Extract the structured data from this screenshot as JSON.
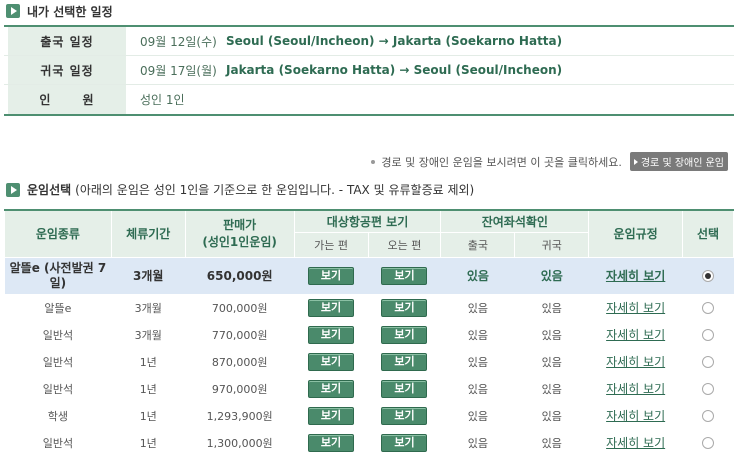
{
  "section_selected": {
    "title": "내가 선택한 일정"
  },
  "itinerary": [
    {
      "label": "출국 일정",
      "date": "09월 12일(수)",
      "route": "Seoul (Seoul/Incheon) → Jakarta (Soekarno Hatta)"
    },
    {
      "label": "귀국 일정",
      "date": "09월 17일(월)",
      "route": "Jakarta (Soekarno Hatta) → Seoul (Seoul/Incheon)"
    },
    {
      "label": "인      원",
      "date": "성인 1인",
      "route": ""
    }
  ],
  "notice": {
    "text": "경로 및 장애인 운임을 보시려면 이 곳을 클릭하세요.",
    "button_label": "경로 및 장애인 운임"
  },
  "fare_section": {
    "title": "운임선택",
    "subtitle": "(아래의 운임은 성인 1인을 기준으로 한 운임입니다. - TAX 및 유류할증료 제외)"
  },
  "table_headers": {
    "fare_type": "운임종류",
    "stay": "체류기간",
    "price": "판매가\n(성인1인운임)",
    "flight_view": "대상항공편 보기",
    "seat_check": "잔여좌석확인",
    "rules": "운임규정",
    "select": "선택",
    "outbound": "가는 편",
    "inbound": "오는 편",
    "depart": "출국",
    "return": "귀국"
  },
  "fares": [
    {
      "type": "알뜰e (사전발권 7일)",
      "stay": "3개월",
      "price": "650,000원",
      "out_btn": "보기",
      "in_btn": "보기",
      "depart": "있음",
      "return": "있음",
      "rule": "자세히 보기",
      "selected": true
    },
    {
      "type": "알뜰e",
      "stay": "3개월",
      "price": "700,000원",
      "out_btn": "보기",
      "in_btn": "보기",
      "depart": "있음",
      "return": "있음",
      "rule": "자세히 보기",
      "selected": false
    },
    {
      "type": "일반석",
      "stay": "3개월",
      "price": "770,000원",
      "out_btn": "보기",
      "in_btn": "보기",
      "depart": "있음",
      "return": "있음",
      "rule": "자세히 보기",
      "selected": false
    },
    {
      "type": "일반석",
      "stay": "1년",
      "price": "870,000원",
      "out_btn": "보기",
      "in_btn": "보기",
      "depart": "있음",
      "return": "있음",
      "rule": "자세히 보기",
      "selected": false
    },
    {
      "type": "일반석",
      "stay": "1년",
      "price": "970,000원",
      "out_btn": "보기",
      "in_btn": "보기",
      "depart": "있음",
      "return": "있음",
      "rule": "자세히 보기",
      "selected": false
    },
    {
      "type": "학생",
      "stay": "1년",
      "price": "1,293,900원",
      "out_btn": "보기",
      "in_btn": "보기",
      "depart": "있음",
      "return": "있음",
      "rule": "자세히 보기",
      "selected": false
    },
    {
      "type": "일반석",
      "stay": "1년",
      "price": "1,300,000원",
      "out_btn": "보기",
      "in_btn": "보기",
      "depart": "있음",
      "return": "있음",
      "rule": "자세히 보기",
      "selected": false
    }
  ],
  "colors": {
    "accent": "#4e8f71",
    "header_bg": "#e5efe8",
    "selected_row": "#dde8f5"
  }
}
